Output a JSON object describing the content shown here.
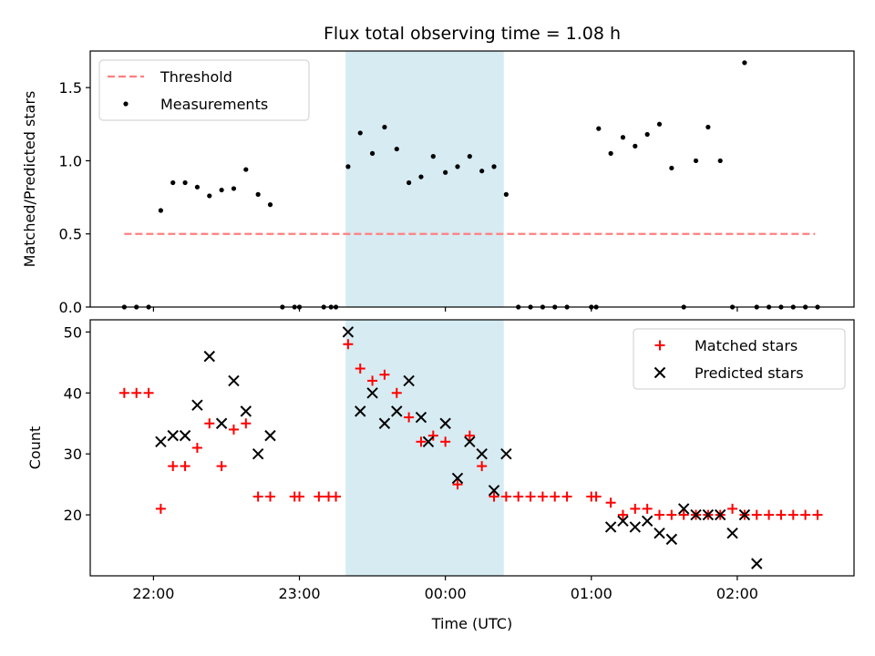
{
  "figure": {
    "title": "Flux total observing time = 1.08 h",
    "xlabel": "Time (UTC)",
    "x_ticks": [
      {
        "t": 0,
        "label": "22:00"
      },
      {
        "t": 60,
        "label": "23:00"
      },
      {
        "t": 120,
        "label": "00:00"
      },
      {
        "t": 180,
        "label": "01:00"
      },
      {
        "t": 240,
        "label": "02:00"
      }
    ],
    "xlim": [
      -26,
      288
    ],
    "shaded_span": {
      "start": 79,
      "end": 144,
      "color": "#add8e6"
    }
  },
  "chart_data": [
    {
      "type": "scatter",
      "ylabel": "Matched/Predicted stars",
      "ylim": [
        0,
        1.75
      ],
      "y_ticks": [
        0.0,
        0.5,
        1.0,
        1.5
      ],
      "y_tick_labels": [
        "0.0",
        "0.5",
        "1.0",
        "1.5"
      ],
      "legend_position": "upper-left",
      "series": [
        {
          "name": "Threshold",
          "style": "dashed-line",
          "color": "#ff7f7f",
          "x": [
            -12,
            272
          ],
          "y": [
            0.5,
            0.5
          ]
        },
        {
          "name": "Measurements",
          "style": "dot",
          "color": "#000000",
          "x": [
            -12,
            -7,
            -2,
            3,
            8,
            13,
            18,
            23,
            28,
            33,
            38,
            43,
            48,
            53,
            58,
            60,
            70,
            73,
            75,
            80,
            85,
            90,
            95,
            100,
            105,
            110,
            115,
            120,
            125,
            130,
            135,
            140,
            145,
            150,
            155,
            160,
            165,
            170,
            180,
            182,
            183,
            188,
            193,
            198,
            203,
            208,
            213,
            218,
            223,
            228,
            233,
            238,
            243,
            248,
            253,
            258,
            263,
            268,
            273
          ],
          "y": [
            0.0,
            0.0,
            0.0,
            0.66,
            0.85,
            0.85,
            0.82,
            0.76,
            0.8,
            0.81,
            0.94,
            0.77,
            0.7,
            0.0,
            0.0,
            0.0,
            0.0,
            0.0,
            0.0,
            0.96,
            1.19,
            1.05,
            1.23,
            1.08,
            0.85,
            0.89,
            1.03,
            0.92,
            0.96,
            1.03,
            0.93,
            0.96,
            0.77,
            0.0,
            0.0,
            0.0,
            0.0,
            0.0,
            0.0,
            0.0,
            1.22,
            1.05,
            1.16,
            1.1,
            1.18,
            1.25,
            0.95,
            0.0,
            1.0,
            1.23,
            1.0,
            0.0,
            1.67,
            0.0,
            0.0,
            0.0,
            0.0,
            0.0,
            0.0
          ]
        }
      ]
    },
    {
      "type": "scatter",
      "ylabel": "Count",
      "ylim": [
        10,
        52
      ],
      "y_ticks": [
        20,
        30,
        40,
        50
      ],
      "y_tick_labels": [
        "20",
        "30",
        "40",
        "50"
      ],
      "legend_position": "upper-right",
      "series": [
        {
          "name": "Matched stars",
          "style": "plus",
          "color": "#ff0000",
          "x": [
            -12,
            -7,
            -2,
            3,
            8,
            13,
            18,
            23,
            28,
            33,
            38,
            43,
            48,
            58,
            60,
            68,
            72,
            75,
            80,
            85,
            90,
            95,
            100,
            105,
            110,
            115,
            120,
            125,
            130,
            135,
            140,
            145,
            150,
            155,
            160,
            165,
            170,
            180,
            182,
            188,
            193,
            198,
            203,
            208,
            213,
            218,
            223,
            228,
            233,
            238,
            243,
            248,
            253,
            258,
            263,
            268,
            273
          ],
          "y": [
            40,
            40,
            40,
            21,
            28,
            28,
            31,
            35,
            28,
            34,
            35,
            23,
            23,
            23,
            23,
            23,
            23,
            23,
            48,
            44,
            42,
            43,
            40,
            36,
            32,
            33,
            32,
            25,
            33,
            28,
            23,
            23,
            23,
            23,
            23,
            23,
            23,
            23,
            23,
            22,
            20,
            21,
            21,
            20,
            20,
            20,
            20,
            20,
            20,
            21,
            20,
            20,
            20,
            20,
            20,
            20,
            20
          ]
        },
        {
          "name": "Predicted stars",
          "style": "x",
          "color": "#000000",
          "x": [
            3,
            8,
            13,
            18,
            23,
            28,
            33,
            38,
            43,
            48,
            80,
            85,
            90,
            95,
            100,
            105,
            110,
            113,
            120,
            125,
            130,
            135,
            140,
            145,
            188,
            193,
            198,
            203,
            208,
            213,
            218,
            223,
            228,
            233,
            238,
            243,
            248
          ],
          "y": [
            32,
            33,
            33,
            38,
            46,
            35,
            42,
            37,
            30,
            33,
            50,
            37,
            40,
            35,
            37,
            42,
            36,
            32,
            35,
            26,
            32,
            30,
            24,
            30,
            18,
            19,
            18,
            19,
            17,
            16,
            21,
            20,
            20,
            20,
            17,
            20,
            12
          ]
        }
      ]
    }
  ]
}
